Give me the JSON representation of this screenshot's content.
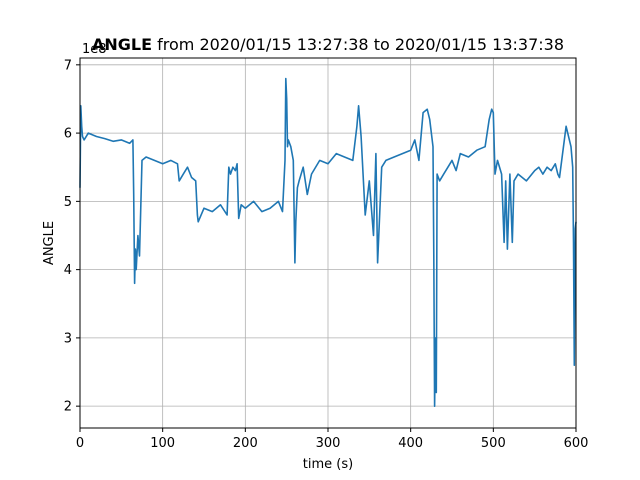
{
  "chart_data": {
    "type": "line",
    "title": "ANGLE from 2020/01/15 13:27:38 to 2020/01/15 13:37:38",
    "title_bold_part": "ANGLE",
    "title_rest": " from 2020/01/15 13:27:38 to 2020/01/15 13:37:38",
    "xlabel": "time (s)",
    "ylabel": "ANGLE",
    "y_offset_label": "1e8",
    "xlim": [
      0,
      600
    ],
    "ylim": [
      1.68,
      7.1
    ],
    "x_ticks": [
      0,
      100,
      200,
      300,
      400,
      500,
      600
    ],
    "y_ticks": [
      2,
      3,
      4,
      5,
      6,
      7
    ],
    "grid": true,
    "color": "#1f77b4",
    "series": [
      {
        "x": [
          0,
          1,
          2,
          3,
          5,
          10,
          20,
          30,
          40,
          50,
          60,
          64,
          65,
          66,
          67,
          68,
          70,
          72,
          75,
          80,
          90,
          100,
          110,
          118,
          120,
          125,
          130,
          135,
          140,
          142,
          143,
          150,
          160,
          170,
          178,
          180,
          182,
          185,
          188,
          190,
          192,
          195,
          200,
          210,
          220,
          230,
          240,
          245,
          248,
          249,
          250,
          251,
          252,
          255,
          258,
          260,
          261,
          263,
          265,
          270,
          275,
          280,
          290,
          300,
          310,
          320,
          330,
          335,
          337,
          340,
          345,
          350,
          355,
          358,
          360,
          365,
          370,
          380,
          390,
          400,
          405,
          410,
          415,
          420,
          423,
          427,
          428,
          429,
          430,
          431,
          432,
          435,
          440,
          445,
          450,
          455,
          460,
          470,
          480,
          490,
          495,
          498,
          500,
          502,
          505,
          510,
          513,
          515,
          517,
          520,
          523,
          525,
          530,
          540,
          550,
          555,
          560,
          565,
          570,
          575,
          578,
          580,
          588,
          594,
          596,
          597,
          598,
          599,
          600
        ],
        "y": [
          5.2,
          6.4,
          6.1,
          5.95,
          5.9,
          6.0,
          5.95,
          5.92,
          5.88,
          5.9,
          5.85,
          5.9,
          5.1,
          3.8,
          4.3,
          4.0,
          4.5,
          4.2,
          5.6,
          5.65,
          5.6,
          5.55,
          5.6,
          5.55,
          5.3,
          5.4,
          5.5,
          5.35,
          5.3,
          4.8,
          4.7,
          4.9,
          4.85,
          4.95,
          4.8,
          5.5,
          5.4,
          5.5,
          5.45,
          5.55,
          4.75,
          4.95,
          4.9,
          5.0,
          4.85,
          4.9,
          5.0,
          4.85,
          5.6,
          6.8,
          6.5,
          5.8,
          5.9,
          5.8,
          5.6,
          4.1,
          4.7,
          5.2,
          5.3,
          5.5,
          5.1,
          5.4,
          5.6,
          5.55,
          5.7,
          5.65,
          5.6,
          6.1,
          6.4,
          5.95,
          4.8,
          5.3,
          4.5,
          5.7,
          4.1,
          5.5,
          5.6,
          5.65,
          5.7,
          5.75,
          5.9,
          5.6,
          6.3,
          6.35,
          6.2,
          5.8,
          4.2,
          2.0,
          3.0,
          2.2,
          5.4,
          5.3,
          5.4,
          5.5,
          5.6,
          5.45,
          5.7,
          5.65,
          5.75,
          5.8,
          6.2,
          6.35,
          6.3,
          5.4,
          5.6,
          5.4,
          4.4,
          5.3,
          4.3,
          5.4,
          4.4,
          5.3,
          5.4,
          5.3,
          5.45,
          5.5,
          5.4,
          5.5,
          5.45,
          5.55,
          5.4,
          5.35,
          6.1,
          5.8,
          5.5,
          4.4,
          2.6,
          4.6,
          4.7
        ]
      }
    ]
  }
}
